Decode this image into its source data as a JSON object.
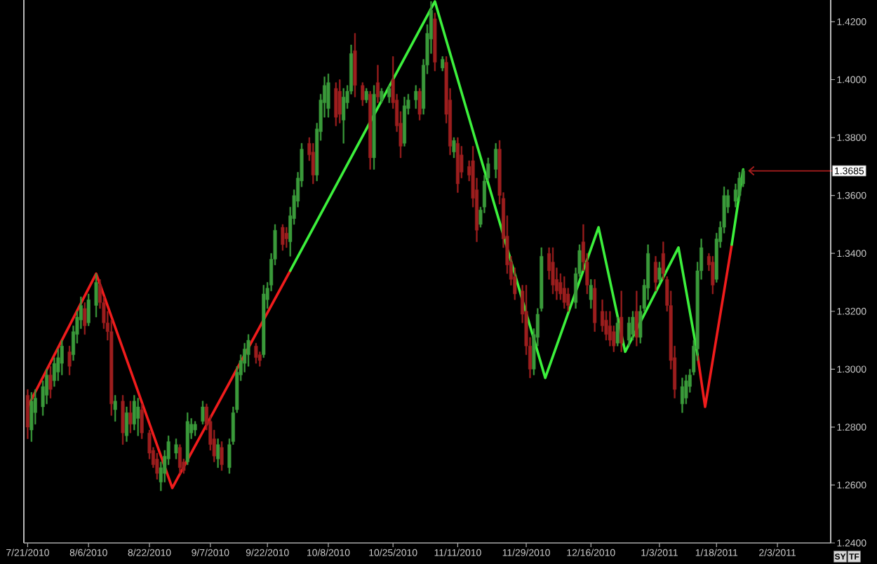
{
  "chart_data": {
    "type": "candlestick",
    "x": [
      "2010-07-21",
      "2010-07-22",
      "2010-07-23",
      "2010-07-25",
      "2010-07-26",
      "2010-07-27",
      "2010-07-28",
      "2010-07-29",
      "2010-07-30",
      "2010-08-01",
      "2010-08-02",
      "2010-08-03",
      "2010-08-04",
      "2010-08-05",
      "2010-08-06",
      "2010-08-08",
      "2010-08-09",
      "2010-08-10",
      "2010-08-11",
      "2010-08-12",
      "2010-08-13",
      "2010-08-15",
      "2010-08-16",
      "2010-08-17",
      "2010-08-18",
      "2010-08-19",
      "2010-08-20",
      "2010-08-22",
      "2010-08-23",
      "2010-08-24",
      "2010-08-25",
      "2010-08-26",
      "2010-08-27",
      "2010-08-29",
      "2010-08-30",
      "2010-08-31",
      "2010-09-01",
      "2010-09-02",
      "2010-09-03",
      "2010-09-05",
      "2010-09-06",
      "2010-09-07",
      "2010-09-08",
      "2010-09-09",
      "2010-09-10",
      "2010-09-12",
      "2010-09-13",
      "2010-09-14",
      "2010-09-15",
      "2010-09-16",
      "2010-09-17",
      "2010-09-19",
      "2010-09-20",
      "2010-09-21",
      "2010-09-22",
      "2010-09-23",
      "2010-09-24",
      "2010-09-26",
      "2010-09-27",
      "2010-09-28",
      "2010-09-29",
      "2010-09-30",
      "2010-10-01",
      "2010-10-03",
      "2010-10-04",
      "2010-10-05",
      "2010-10-06",
      "2010-10-07",
      "2010-10-08",
      "2010-10-10",
      "2010-10-11",
      "2010-10-12",
      "2010-10-13",
      "2010-10-14",
      "2010-10-15",
      "2010-10-17",
      "2010-10-18",
      "2010-10-19",
      "2010-10-20",
      "2010-10-21",
      "2010-10-22",
      "2010-10-24",
      "2010-10-25",
      "2010-10-26",
      "2010-10-27",
      "2010-10-28",
      "2010-10-29",
      "2010-10-31",
      "2010-11-01",
      "2010-11-02",
      "2010-11-03",
      "2010-11-04",
      "2010-11-05",
      "2010-11-07",
      "2010-11-08",
      "2010-11-09",
      "2010-11-10",
      "2010-11-11",
      "2010-11-12",
      "2010-11-14",
      "2010-11-15",
      "2010-11-16",
      "2010-11-17",
      "2010-11-18",
      "2010-11-19",
      "2010-11-21",
      "2010-11-22",
      "2010-11-23",
      "2010-11-24",
      "2010-11-25",
      "2010-11-26",
      "2010-11-28",
      "2010-11-29",
      "2010-11-30",
      "2010-12-01",
      "2010-12-02",
      "2010-12-03",
      "2010-12-05",
      "2010-12-06",
      "2010-12-07",
      "2010-12-08",
      "2010-12-09",
      "2010-12-10",
      "2010-12-12",
      "2010-12-13",
      "2010-12-14",
      "2010-12-15",
      "2010-12-16",
      "2010-12-17",
      "2010-12-19",
      "2010-12-20",
      "2010-12-21",
      "2010-12-22",
      "2010-12-23",
      "2010-12-24",
      "2010-12-26",
      "2010-12-27",
      "2010-12-28",
      "2010-12-29",
      "2010-12-30",
      "2010-12-31",
      "2011-01-02",
      "2011-01-03",
      "2011-01-04",
      "2011-01-05",
      "2011-01-06",
      "2011-01-07",
      "2011-01-09",
      "2011-01-10",
      "2011-01-11",
      "2011-01-12",
      "2011-01-13",
      "2011-01-14",
      "2011-01-16",
      "2011-01-17",
      "2011-01-18",
      "2011-01-19",
      "2011-01-20",
      "2011-01-21",
      "2011-01-23",
      "2011-01-24",
      "2011-01-25"
    ],
    "ohlc": [
      [
        1.291,
        1.293,
        1.276,
        1.28
      ],
      [
        1.279,
        1.292,
        1.275,
        1.289
      ],
      [
        1.285,
        1.293,
        1.281,
        1.29
      ],
      [
        1.287,
        1.296,
        1.284,
        1.294
      ],
      [
        1.291,
        1.3,
        1.288,
        1.298
      ],
      [
        1.298,
        1.301,
        1.29,
        1.293
      ],
      [
        1.296,
        1.304,
        1.294,
        1.302
      ],
      [
        1.299,
        1.307,
        1.296,
        1.304
      ],
      [
        1.302,
        1.31,
        1.298,
        1.308
      ],
      [
        1.306,
        1.308,
        1.298,
        1.301
      ],
      [
        1.305,
        1.315,
        1.303,
        1.313
      ],
      [
        1.312,
        1.32,
        1.309,
        1.318
      ],
      [
        1.317,
        1.325,
        1.314,
        1.322
      ],
      [
        1.321,
        1.323,
        1.312,
        1.315
      ],
      [
        1.316,
        1.326,
        1.315,
        1.324
      ],
      [
        1.322,
        1.333,
        1.318,
        1.33
      ],
      [
        1.329,
        1.331,
        1.321,
        1.323
      ],
      [
        1.323,
        1.325,
        1.314,
        1.316
      ],
      [
        1.316,
        1.32,
        1.31,
        1.313
      ],
      [
        1.313,
        1.317,
        1.284,
        1.288
      ],
      [
        1.286,
        1.291,
        1.282,
        1.289
      ],
      [
        1.289,
        1.291,
        1.274,
        1.278
      ],
      [
        1.277,
        1.287,
        1.275,
        1.285
      ],
      [
        1.285,
        1.289,
        1.278,
        1.281
      ],
      [
        1.281,
        1.291,
        1.279,
        1.289
      ],
      [
        1.283,
        1.29,
        1.277,
        1.287
      ],
      [
        1.286,
        1.288,
        1.276,
        1.278
      ],
      [
        1.278,
        1.279,
        1.269,
        1.271
      ],
      [
        1.272,
        1.273,
        1.266,
        1.267
      ],
      [
        1.269,
        1.271,
        1.262,
        1.264
      ],
      [
        1.261,
        1.268,
        1.258,
        1.266
      ],
      [
        1.264,
        1.272,
        1.261,
        1.27
      ],
      [
        1.269,
        1.277,
        1.267,
        1.275
      ],
      [
        1.271,
        1.276,
        1.269,
        1.274
      ],
      [
        1.273,
        1.274,
        1.264,
        1.266
      ],
      [
        1.268,
        1.269,
        1.264,
        1.265
      ],
      [
        1.268,
        1.285,
        1.267,
        1.282
      ],
      [
        1.278,
        1.283,
        1.276,
        1.281
      ],
      [
        1.279,
        1.282,
        1.277,
        1.281
      ],
      [
        1.282,
        1.289,
        1.281,
        1.287
      ],
      [
        1.287,
        1.288,
        1.279,
        1.281
      ],
      [
        1.282,
        1.284,
        1.272,
        1.274
      ],
      [
        1.276,
        1.279,
        1.268,
        1.27
      ],
      [
        1.269,
        1.276,
        1.266,
        1.274
      ],
      [
        1.273,
        1.275,
        1.265,
        1.267
      ],
      [
        1.266,
        1.276,
        1.264,
        1.274
      ],
      [
        1.275,
        1.287,
        1.274,
        1.285
      ],
      [
        1.286,
        1.301,
        1.285,
        1.299
      ],
      [
        1.298,
        1.305,
        1.296,
        1.303
      ],
      [
        1.302,
        1.309,
        1.299,
        1.307
      ],
      [
        1.305,
        1.312,
        1.301,
        1.31
      ],
      [
        1.308,
        1.309,
        1.302,
        1.304
      ],
      [
        1.305,
        1.306,
        1.301,
        1.303
      ],
      [
        1.305,
        1.329,
        1.304,
        1.326
      ],
      [
        1.324,
        1.33,
        1.321,
        1.328
      ],
      [
        1.329,
        1.34,
        1.327,
        1.338
      ],
      [
        1.338,
        1.35,
        1.336,
        1.348
      ],
      [
        1.349,
        1.35,
        1.341,
        1.343
      ],
      [
        1.347,
        1.349,
        1.342,
        1.345
      ],
      [
        1.344,
        1.356,
        1.339,
        1.353
      ],
      [
        1.352,
        1.362,
        1.35,
        1.36
      ],
      [
        1.358,
        1.368,
        1.356,
        1.366
      ],
      [
        1.365,
        1.378,
        1.363,
        1.376
      ],
      [
        1.378,
        1.38,
        1.372,
        1.374
      ],
      [
        1.375,
        1.378,
        1.364,
        1.367
      ],
      [
        1.367,
        1.385,
        1.365,
        1.383
      ],
      [
        1.382,
        1.395,
        1.379,
        1.393
      ],
      [
        1.392,
        1.401,
        1.387,
        1.398
      ],
      [
        1.39,
        1.402,
        1.387,
        1.399
      ],
      [
        1.397,
        1.399,
        1.384,
        1.387
      ],
      [
        1.396,
        1.4,
        1.385,
        1.388
      ],
      [
        1.386,
        1.397,
        1.378,
        1.394
      ],
      [
        1.392,
        1.398,
        1.39,
        1.396
      ],
      [
        1.396,
        1.412,
        1.395,
        1.409
      ],
      [
        1.41,
        1.416,
        1.394,
        1.398
      ],
      [
        1.398,
        1.399,
        1.391,
        1.393
      ],
      [
        1.393,
        1.397,
        1.392,
        1.396
      ],
      [
        1.395,
        1.396,
        1.369,
        1.373
      ],
      [
        1.373,
        1.398,
        1.369,
        1.395
      ],
      [
        1.399,
        1.405,
        1.392,
        1.394
      ],
      [
        1.393,
        1.397,
        1.392,
        1.396
      ],
      [
        1.394,
        1.398,
        1.392,
        1.397
      ],
      [
        1.4,
        1.408,
        1.39,
        1.392
      ],
      [
        1.393,
        1.395,
        1.382,
        1.384
      ],
      [
        1.385,
        1.389,
        1.373,
        1.377
      ],
      [
        1.378,
        1.394,
        1.377,
        1.391
      ],
      [
        1.39,
        1.395,
        1.388,
        1.393
      ],
      [
        1.393,
        1.398,
        1.39,
        1.396
      ],
      [
        1.396,
        1.397,
        1.386,
        1.388
      ],
      [
        1.39,
        1.407,
        1.388,
        1.405
      ],
      [
        1.405,
        1.419,
        1.402,
        1.416
      ],
      [
        1.414,
        1.427,
        1.409,
        1.424
      ],
      [
        1.421,
        1.423,
        1.403,
        1.406
      ],
      [
        1.404,
        1.408,
        1.403,
        1.407
      ],
      [
        1.406,
        1.408,
        1.385,
        1.388
      ],
      [
        1.393,
        1.397,
        1.374,
        1.377
      ],
      [
        1.375,
        1.38,
        1.373,
        1.379
      ],
      [
        1.378,
        1.38,
        1.361,
        1.364
      ],
      [
        1.374,
        1.377,
        1.366,
        1.368
      ],
      [
        1.37,
        1.372,
        1.365,
        1.367
      ],
      [
        1.372,
        1.377,
        1.356,
        1.359
      ],
      [
        1.362,
        1.366,
        1.344,
        1.348
      ],
      [
        1.35,
        1.356,
        1.349,
        1.355
      ],
      [
        1.356,
        1.367,
        1.354,
        1.365
      ],
      [
        1.366,
        1.373,
        1.365,
        1.371
      ],
      [
        1.369,
        1.378,
        1.366,
        1.376
      ],
      [
        1.376,
        1.379,
        1.357,
        1.36
      ],
      [
        1.359,
        1.361,
        1.342,
        1.345
      ],
      [
        1.346,
        1.353,
        1.333,
        1.336
      ],
      [
        1.337,
        1.339,
        1.329,
        1.331
      ],
      [
        1.332,
        1.335,
        1.324,
        1.326
      ],
      [
        1.327,
        1.329,
        1.316,
        1.319
      ],
      [
        1.32,
        1.329,
        1.305,
        1.308
      ],
      [
        1.308,
        1.311,
        1.297,
        1.3
      ],
      [
        1.3,
        1.314,
        1.298,
        1.312
      ],
      [
        1.311,
        1.321,
        1.308,
        1.319
      ],
      [
        1.321,
        1.342,
        1.32,
        1.339
      ],
      [
        1.34,
        1.342,
        1.331,
        1.334
      ],
      [
        1.337,
        1.342,
        1.326,
        1.329
      ],
      [
        1.331,
        1.335,
        1.324,
        1.327
      ],
      [
        1.33,
        1.333,
        1.324,
        1.326
      ],
      [
        1.328,
        1.332,
        1.321,
        1.323
      ],
      [
        1.326,
        1.328,
        1.32,
        1.322
      ],
      [
        1.323,
        1.335,
        1.321,
        1.333
      ],
      [
        1.333,
        1.343,
        1.332,
        1.341
      ],
      [
        1.344,
        1.35,
        1.334,
        1.337
      ],
      [
        1.337,
        1.34,
        1.326,
        1.329
      ],
      [
        1.324,
        1.331,
        1.321,
        1.329
      ],
      [
        1.328,
        1.331,
        1.313,
        1.316
      ],
      [
        1.32,
        1.324,
        1.313,
        1.315
      ],
      [
        1.317,
        1.32,
        1.31,
        1.312
      ],
      [
        1.315,
        1.32,
        1.308,
        1.31
      ],
      [
        1.313,
        1.315,
        1.306,
        1.308
      ],
      [
        1.309,
        1.318,
        1.308,
        1.316
      ],
      [
        1.318,
        1.327,
        1.306,
        1.309
      ],
      [
        1.31,
        1.318,
        1.308,
        1.316
      ],
      [
        1.312,
        1.32,
        1.31,
        1.318
      ],
      [
        1.32,
        1.327,
        1.308,
        1.311
      ],
      [
        1.311,
        1.322,
        1.309,
        1.32
      ],
      [
        1.321,
        1.331,
        1.32,
        1.329
      ],
      [
        1.328,
        1.343,
        1.324,
        1.34
      ],
      [
        1.337,
        1.339,
        1.327,
        1.33
      ],
      [
        1.331,
        1.337,
        1.33,
        1.335
      ],
      [
        1.34,
        1.344,
        1.331,
        1.333
      ],
      [
        1.331,
        1.332,
        1.32,
        1.322
      ],
      [
        1.322,
        1.327,
        1.3,
        1.303
      ],
      [
        1.304,
        1.308,
        1.29,
        1.293
      ],
      [
        1.288,
        1.297,
        1.285,
        1.294
      ],
      [
        1.29,
        1.298,
        1.288,
        1.296
      ],
      [
        1.294,
        1.3,
        1.292,
        1.298
      ],
      [
        1.299,
        1.31,
        1.298,
        1.308
      ],
      [
        1.307,
        1.337,
        1.303,
        1.334
      ],
      [
        1.334,
        1.345,
        1.331,
        1.342
      ],
      [
        1.339,
        1.34,
        1.334,
        1.336
      ],
      [
        1.337,
        1.339,
        1.326,
        1.329
      ],
      [
        1.331,
        1.347,
        1.33,
        1.345
      ],
      [
        1.344,
        1.351,
        1.342,
        1.349
      ],
      [
        1.349,
        1.363,
        1.347,
        1.36
      ],
      [
        1.356,
        1.362,
        1.354,
        1.36
      ],
      [
        1.358,
        1.364,
        1.356,
        1.362
      ],
      [
        1.36,
        1.368,
        1.358,
        1.366
      ],
      [
        1.364,
        1.369,
        1.363,
        1.3685
      ]
    ],
    "colors": [
      "#9c1e1e",
      "#3a9a3a",
      "#3a9a3a",
      "#3a9a3a",
      "#3a9a3a",
      "#9c1e1e",
      "#3a9a3a",
      "#3a9a3a",
      "#3a9a3a",
      "#9c1e1e",
      "#3a9a3a",
      "#3a9a3a",
      "#3a9a3a",
      "#9c1e1e",
      "#3a9a3a",
      "#3a9a3a",
      "#9c1e1e",
      "#9c1e1e",
      "#9c1e1e",
      "#9c1e1e",
      "#3a9a3a",
      "#9c1e1e",
      "#3a9a3a",
      "#9c1e1e",
      "#3a9a3a",
      "#3a9a3a",
      "#9c1e1e",
      "#9c1e1e",
      "#9c1e1e",
      "#9c1e1e",
      "#3a9a3a",
      "#3a9a3a",
      "#3a9a3a",
      "#3a9a3a",
      "#9c1e1e",
      "#9c1e1e",
      "#3a9a3a",
      "#3a9a3a",
      "#3a9a3a",
      "#3a9a3a",
      "#9c1e1e",
      "#9c1e1e",
      "#9c1e1e",
      "#3a9a3a",
      "#9c1e1e",
      "#3a9a3a",
      "#3a9a3a",
      "#3a9a3a",
      "#3a9a3a",
      "#3a9a3a",
      "#3a9a3a",
      "#9c1e1e",
      "#9c1e1e",
      "#3a9a3a",
      "#3a9a3a",
      "#3a9a3a",
      "#3a9a3a",
      "#9c1e1e",
      "#9c1e1e",
      "#3a9a3a",
      "#3a9a3a",
      "#3a9a3a",
      "#3a9a3a",
      "#9c1e1e",
      "#9c1e1e",
      "#3a9a3a",
      "#3a9a3a",
      "#3a9a3a",
      "#3a9a3a",
      "#9c1e1e",
      "#9c1e1e",
      "#3a9a3a",
      "#3a9a3a",
      "#3a9a3a",
      "#9c1e1e",
      "#9c1e1e",
      "#3a9a3a",
      "#9c1e1e",
      "#3a9a3a",
      "#9c1e1e",
      "#3a9a3a",
      "#3a9a3a",
      "#9c1e1e",
      "#9c1e1e",
      "#9c1e1e",
      "#3a9a3a",
      "#3a9a3a",
      "#3a9a3a",
      "#9c1e1e",
      "#3a9a3a",
      "#3a9a3a",
      "#3a9a3a",
      "#9c1e1e",
      "#3a9a3a",
      "#9c1e1e",
      "#9c1e1e",
      "#3a9a3a",
      "#9c1e1e",
      "#9c1e1e",
      "#9c1e1e",
      "#9c1e1e",
      "#9c1e1e",
      "#3a9a3a",
      "#3a9a3a",
      "#3a9a3a",
      "#3a9a3a",
      "#9c1e1e",
      "#9c1e1e",
      "#9c1e1e",
      "#9c1e1e",
      "#9c1e1e",
      "#9c1e1e",
      "#9c1e1e",
      "#9c1e1e",
      "#3a9a3a",
      "#3a9a3a",
      "#3a9a3a",
      "#9c1e1e",
      "#9c1e1e",
      "#9c1e1e",
      "#9c1e1e",
      "#9c1e1e",
      "#9c1e1e",
      "#3a9a3a",
      "#3a9a3a",
      "#9c1e1e",
      "#9c1e1e",
      "#3a9a3a",
      "#9c1e1e",
      "#9c1e1e",
      "#9c1e1e",
      "#9c1e1e",
      "#9c1e1e",
      "#3a9a3a",
      "#9c1e1e",
      "#3a9a3a",
      "#3a9a3a",
      "#9c1e1e",
      "#3a9a3a",
      "#3a9a3a",
      "#3a9a3a",
      "#9c1e1e",
      "#3a9a3a",
      "#9c1e1e",
      "#9c1e1e",
      "#9c1e1e",
      "#9c1e1e",
      "#3a9a3a",
      "#3a9a3a",
      "#3a9a3a",
      "#3a9a3a",
      "#3a9a3a",
      "#3a9a3a",
      "#9c1e1e",
      "#9c1e1e",
      "#3a9a3a",
      "#3a9a3a",
      "#3a9a3a",
      "#3a9a3a",
      "#3a9a3a",
      "#3a9a3a",
      "#3a9a3a"
    ],
    "series": [
      {
        "type": "line",
        "color": "#f01c1c",
        "x": [
          "2010-07-21",
          "2010-08-08",
          "2010-08-28",
          "2010-09-28",
          "2010-11-05",
          "2011-01-13",
          "2011-01-15",
          "2011-01-22"
        ],
        "values": [
          1.287,
          1.333,
          1.259,
          1.334,
          null,
          1.305,
          1.287,
          1.343
        ]
      },
      {
        "type": "line",
        "color": "#3cf03c",
        "x": [
          "2010-09-28",
          "2010-11-05",
          "2010-12-04",
          "2010-12-18",
          "2010-12-25",
          "2011-01-08",
          "2011-01-13",
          "2011-01-18",
          "2011-01-22",
          "2011-01-25"
        ],
        "values": [
          1.334,
          1.427,
          1.297,
          1.349,
          1.306,
          1.342,
          1.305,
          null,
          1.343,
          1.369
        ]
      }
    ],
    "xlim": [
      "2010-07-20",
      "2011-02-17"
    ],
    "xticks": [
      {
        "value": "2010-07-21",
        "label": "7/21/2010"
      },
      {
        "value": "2010-08-06",
        "label": "8/6/2010"
      },
      {
        "value": "2010-08-22",
        "label": "8/22/2010"
      },
      {
        "value": "2010-09-07",
        "label": "9/7/2010"
      },
      {
        "value": "2010-09-22",
        "label": "9/22/2010"
      },
      {
        "value": "2010-10-08",
        "label": "10/8/2010"
      },
      {
        "value": "2010-10-25",
        "label": "10/25/2010"
      },
      {
        "value": "2010-11-11",
        "label": "11/11/2010"
      },
      {
        "value": "2010-11-29",
        "label": "11/29/2010"
      },
      {
        "value": "2010-12-16",
        "label": "12/16/2010"
      },
      {
        "value": "2011-01-03",
        "label": "1/3/2011"
      },
      {
        "value": "2011-01-18",
        "label": "1/18/2011"
      },
      {
        "value": "2011-02-03",
        "label": "2/3/2011"
      }
    ],
    "ylim": [
      1.24,
      1.4275
    ],
    "yticks": [
      {
        "value": 1.24,
        "label": "1.2400"
      },
      {
        "value": 1.26,
        "label": "1.2600"
      },
      {
        "value": 1.28,
        "label": "1.2800"
      },
      {
        "value": 1.3,
        "label": "1.3000"
      },
      {
        "value": 1.32,
        "label": "1.3200"
      },
      {
        "value": 1.34,
        "label": "1.3400"
      },
      {
        "value": 1.36,
        "label": "1.3600"
      },
      {
        "value": 1.38,
        "label": "1.3800"
      },
      {
        "value": 1.4,
        "label": "1.4000"
      },
      {
        "value": 1.42,
        "label": "1.4200"
      }
    ],
    "annotations": [
      {
        "text": "1.3685",
        "x": "2011-01-25",
        "y": 1.3685
      },
      "SY",
      "TF"
    ]
  }
}
